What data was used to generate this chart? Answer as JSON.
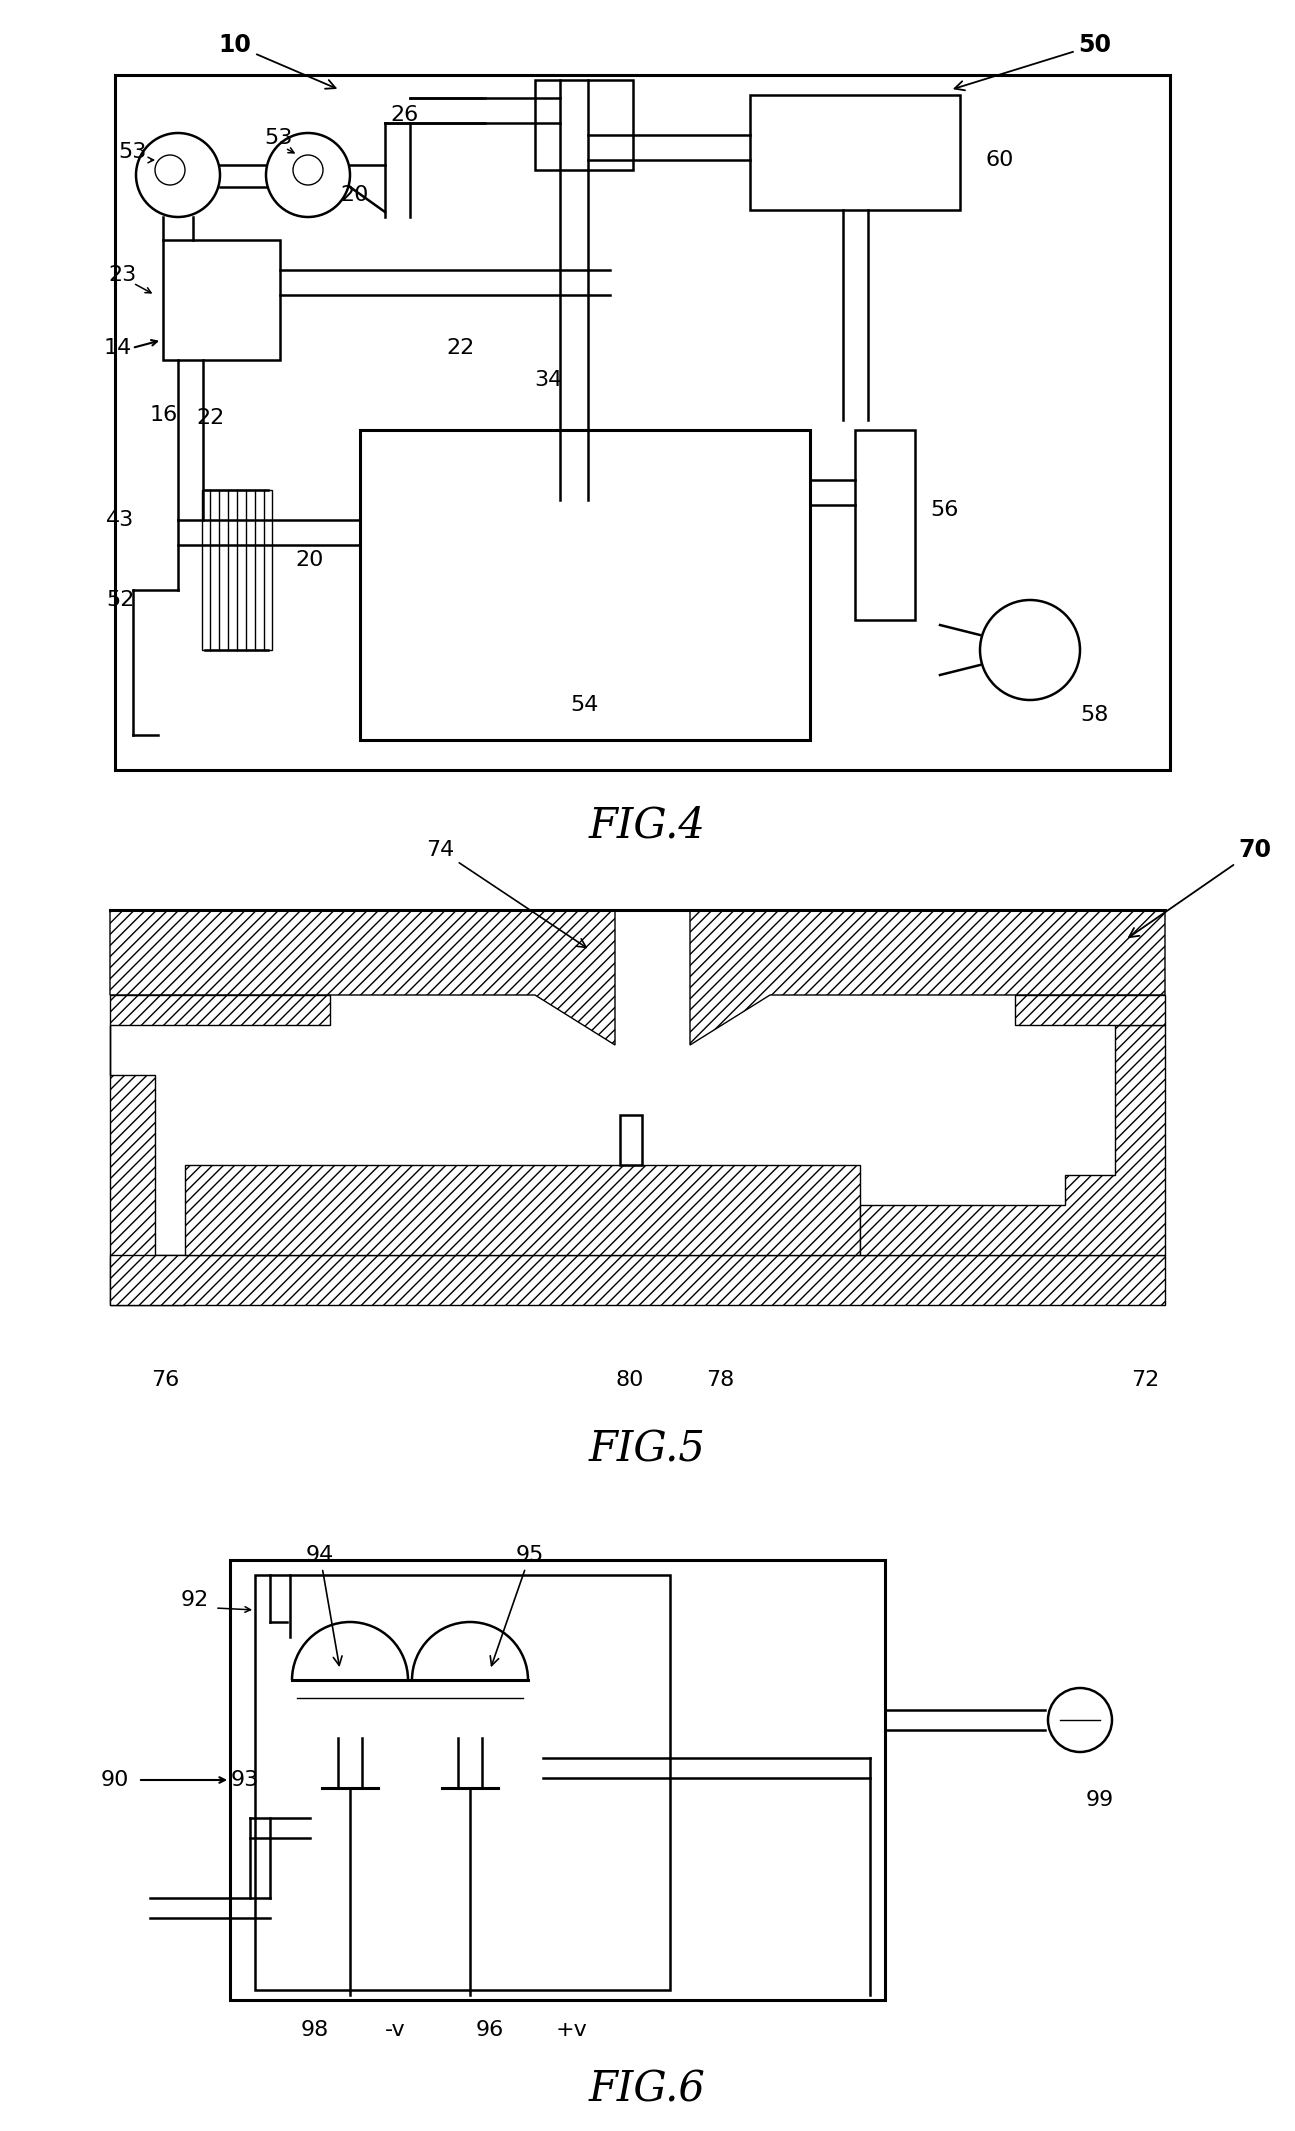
{
  "bg_color": "#ffffff",
  "line_color": "#000000",
  "fig4": {
    "caption": "FIG.4",
    "labels": [
      "10",
      "50",
      "53",
      "53",
      "26",
      "34",
      "60",
      "23",
      "14",
      "16",
      "22",
      "22",
      "43",
      "52",
      "20",
      "20",
      "54",
      "56",
      "58"
    ]
  },
  "fig5": {
    "caption": "FIG.5",
    "labels": [
      "70",
      "74",
      "76",
      "80",
      "78",
      "72"
    ]
  },
  "fig6": {
    "caption": "FIG.6",
    "labels": [
      "90",
      "92",
      "93",
      "94",
      "95",
      "96",
      "98",
      "-v",
      "+v",
      "99"
    ]
  }
}
